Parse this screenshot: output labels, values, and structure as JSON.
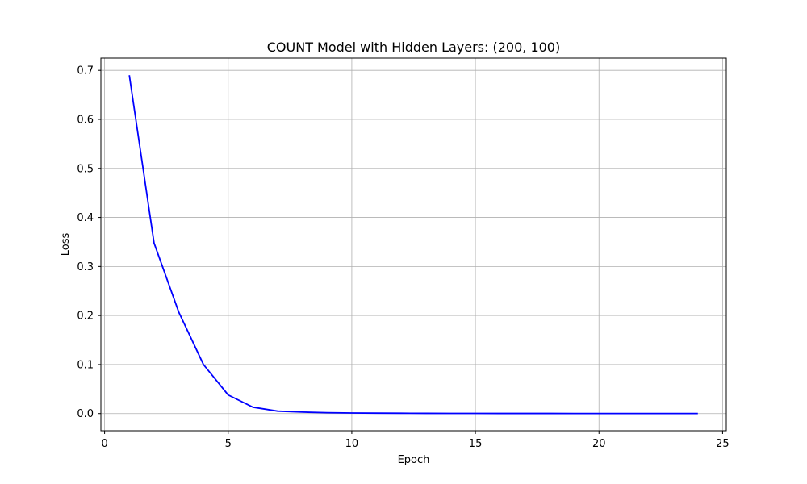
{
  "chart_data": {
    "type": "line",
    "title": "COUNT Model with Hidden Layers: (200, 100)",
    "xlabel": "Epoch",
    "ylabel": "Loss",
    "xlim": [
      -0.15,
      25.15
    ],
    "ylim": [
      -0.035,
      0.725
    ],
    "xticks": [
      0,
      5,
      10,
      15,
      20,
      25
    ],
    "yticks": [
      0.0,
      0.1,
      0.2,
      0.3,
      0.4,
      0.5,
      0.6,
      0.7
    ],
    "xtick_labels": [
      "0",
      "5",
      "10",
      "15",
      "20",
      "25"
    ],
    "ytick_labels": [
      "0.0",
      "0.1",
      "0.2",
      "0.3",
      "0.4",
      "0.5",
      "0.6",
      "0.7"
    ],
    "grid": true,
    "line_color": "#0000ff",
    "grid_color": "#b0b0b0",
    "series": [
      {
        "x": [
          1,
          2,
          3,
          4,
          5,
          6,
          7,
          8,
          9,
          10,
          11,
          12,
          13,
          14,
          15,
          16,
          17,
          18,
          19,
          20,
          21,
          22,
          23,
          24
        ],
        "values": [
          0.69,
          0.348,
          0.207,
          0.1,
          0.038,
          0.013,
          0.005,
          0.003,
          0.0018,
          0.0012,
          0.0009,
          0.0007,
          0.0005,
          0.0004,
          0.0004,
          0.0003,
          0.0003,
          0.0003,
          0.0002,
          0.0002,
          0.0002,
          0.0002,
          0.0002,
          0.0002
        ]
      }
    ]
  }
}
